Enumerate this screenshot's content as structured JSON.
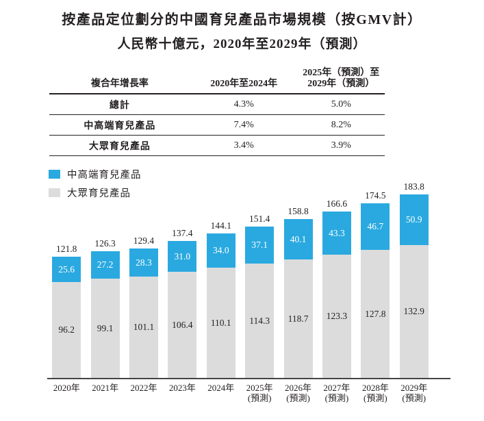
{
  "title": {
    "line1": "按產品定位劃分的中國育兒產品市場規模（按GMV計）",
    "line2": "人民幣十億元，2020年至2029年（預測）"
  },
  "table": {
    "header": {
      "col1": "複合年增長率",
      "col2": "2020年至2024年",
      "col3_line1": "2025年（預測）至",
      "col3_line2": "2029年（預測）"
    },
    "rows": [
      {
        "label": "總計",
        "v1": "4.3%",
        "v2": "5.0%"
      },
      {
        "label": "中高端育兒產品",
        "v1": "7.4%",
        "v2": "8.2%"
      },
      {
        "label": "大眾育兒產品",
        "v1": "3.4%",
        "v2": "3.9%"
      }
    ]
  },
  "legend": {
    "items": [
      {
        "label": "中高端育兒產品",
        "color": "#2AA9E0"
      },
      {
        "label": "大眾育兒產品",
        "color": "#DCDCDC"
      }
    ]
  },
  "chart_data": {
    "type": "bar",
    "stacked": true,
    "title": "按產品定位劃分的中國育兒產品市場規模（按GMV計）",
    "subtitle": "人民幣十億元，2020年至2029年（預測）",
    "unit": "人民幣十億元",
    "categories": [
      "2020年",
      "2021年",
      "2022年",
      "2023年",
      "2024年",
      "2025年",
      "2026年",
      "2027年",
      "2028年",
      "2029年"
    ],
    "forecast_suffix": "(預測)",
    "forecast_start_index": 5,
    "series": [
      {
        "name": "中高端育兒產品",
        "position": "top",
        "color": "#2AA9E0",
        "label_color": "#ffffff",
        "values": [
          25.6,
          27.2,
          28.3,
          31.0,
          34.0,
          37.1,
          40.1,
          43.3,
          46.7,
          50.9
        ]
      },
      {
        "name": "大眾育兒產品",
        "position": "bottom",
        "color": "#DCDCDC",
        "label_color": "#231F20",
        "values": [
          96.2,
          99.1,
          101.1,
          106.4,
          110.1,
          114.3,
          118.7,
          123.3,
          127.8,
          132.9
        ]
      }
    ],
    "totals": [
      121.8,
      126.3,
      129.4,
      137.4,
      144.1,
      151.4,
      158.8,
      166.6,
      174.5,
      183.8
    ],
    "ylim": [
      0,
      190
    ],
    "grid": false,
    "legend_position": "top-left"
  }
}
